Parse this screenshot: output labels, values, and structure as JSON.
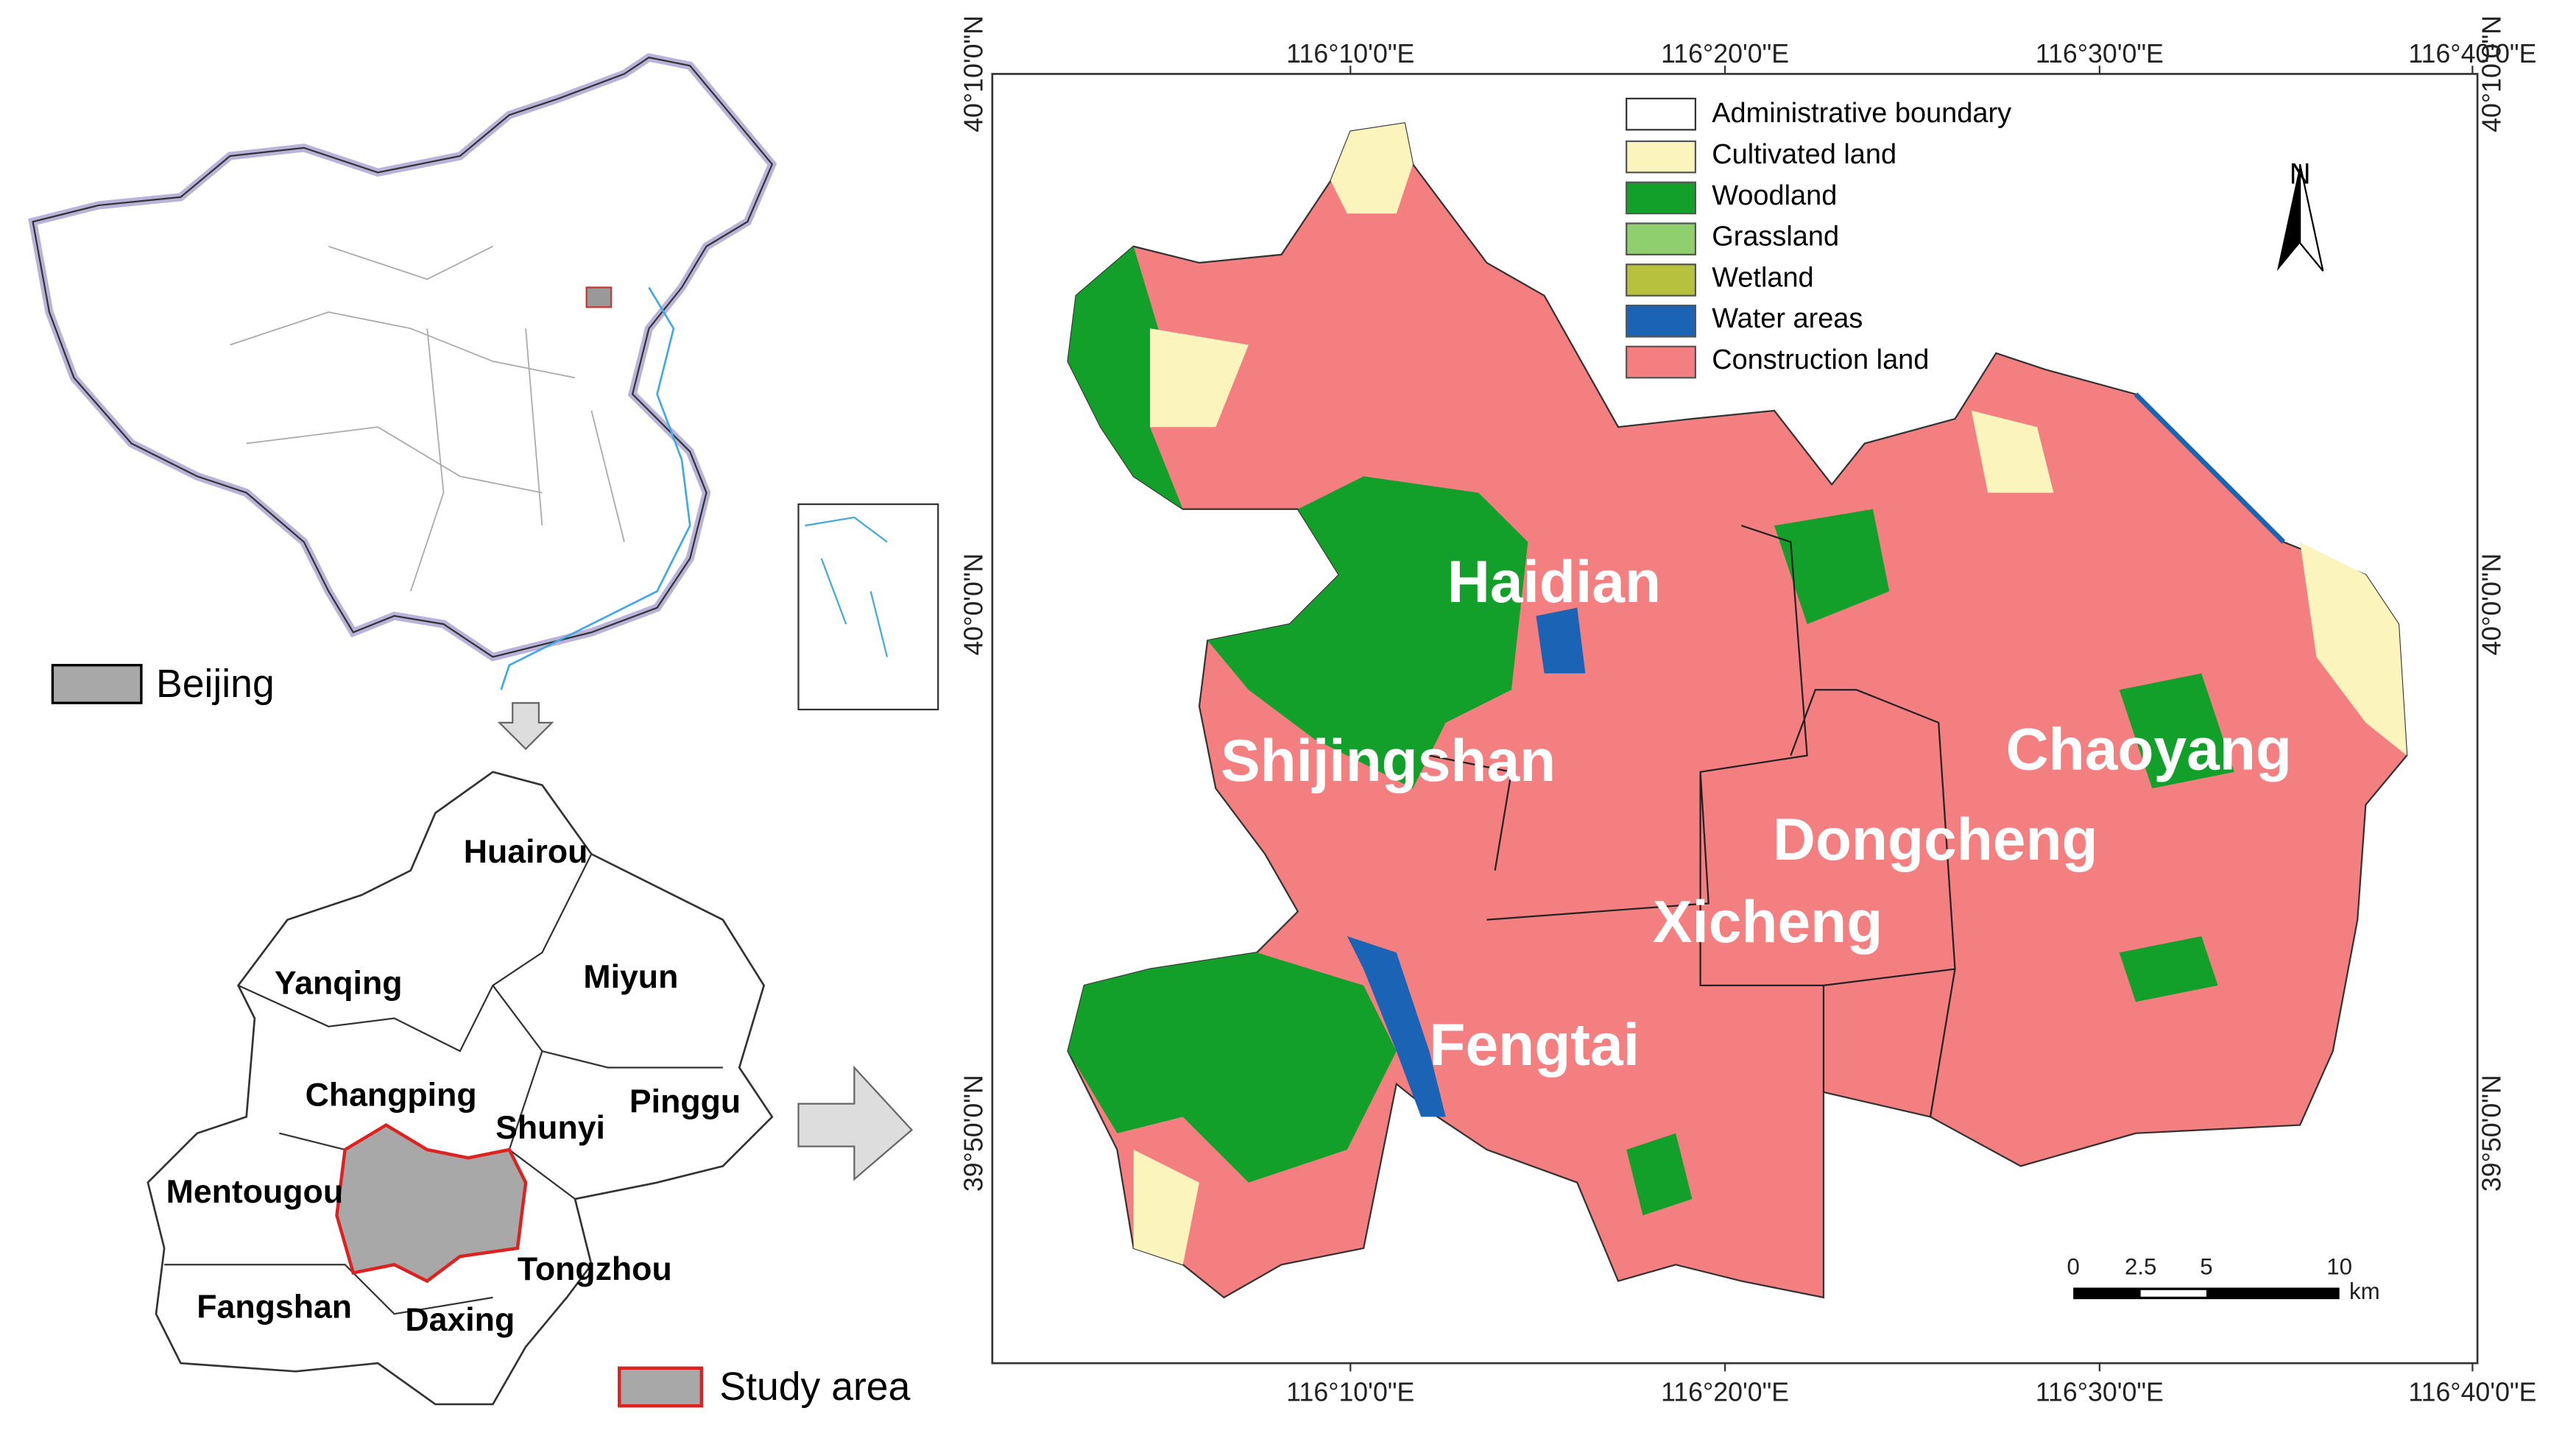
{
  "china_map": {
    "legend": "Beijing"
  },
  "beijing_map": {
    "districts": [
      {
        "name": "Huairou",
        "pos": [
          320,
          520
        ]
      },
      {
        "name": "Yanqing",
        "pos": [
          206,
          600
        ]
      },
      {
        "name": "Miyun",
        "pos": [
          384,
          596
        ]
      },
      {
        "name": "Changping",
        "pos": [
          238,
          668
        ]
      },
      {
        "name": "Shunyi",
        "pos": [
          335,
          688
        ]
      },
      {
        "name": "Pinggu",
        "pos": [
          417,
          672
        ]
      },
      {
        "name": "Mentougou",
        "pos": [
          155,
          727
        ]
      },
      {
        "name": "Tongzhou",
        "pos": [
          362,
          774
        ]
      },
      {
        "name": "Fangshan",
        "pos": [
          167,
          797
        ]
      },
      {
        "name": "Daxing",
        "pos": [
          280,
          805
        ]
      }
    ],
    "legend": "Study area"
  },
  "main_map": {
    "legend": [
      {
        "label": "Administrative boundary",
        "color": "#ffffff"
      },
      {
        "label": "Cultivated land",
        "color": "#fbf5bd"
      },
      {
        "label": "Woodland",
        "color": "#13a02a"
      },
      {
        "label": "Grassland",
        "color": "#8fcf6e"
      },
      {
        "label": "Wetland",
        "color": "#b8c13e"
      },
      {
        "label": "Water areas",
        "color": "#1a63b5"
      },
      {
        "label": "Construction land",
        "color": "#f47f80"
      }
    ],
    "north": "N",
    "districts": [
      {
        "name": "Haidian",
        "pos": [
          946,
          357
        ]
      },
      {
        "name": "Shijingshan",
        "pos": [
          845,
          466
        ]
      },
      {
        "name": "Chaoyang",
        "pos": [
          1308,
          459
        ]
      },
      {
        "name": "Dongcheng",
        "pos": [
          1178,
          514
        ]
      },
      {
        "name": "Xicheng",
        "pos": [
          1076,
          564
        ]
      },
      {
        "name": "Fengtai",
        "pos": [
          934,
          639
        ]
      }
    ],
    "x_ticks": [
      {
        "label": "116°10'0\"E",
        "pos": 822
      },
      {
        "label": "116°20'0\"E",
        "pos": 1050
      },
      {
        "label": "116°30'0\"E",
        "pos": 1278
      },
      {
        "label": "116°40'0\"E",
        "pos": 1505
      }
    ],
    "y_ticks": [
      {
        "label": "40°10'0\"N",
        "pos": 45
      },
      {
        "label": "40°0'0\"N",
        "pos": 368
      },
      {
        "label": "39°50'0\"N",
        "pos": 690
      }
    ],
    "scale_bar": {
      "ticks": [
        {
          "label": "0",
          "pos": 1262
        },
        {
          "label": "2.5",
          "pos": 1303
        },
        {
          "label": "5",
          "pos": 1343
        },
        {
          "label": "10",
          "pos": 1424
        }
      ],
      "unit": "km"
    }
  }
}
